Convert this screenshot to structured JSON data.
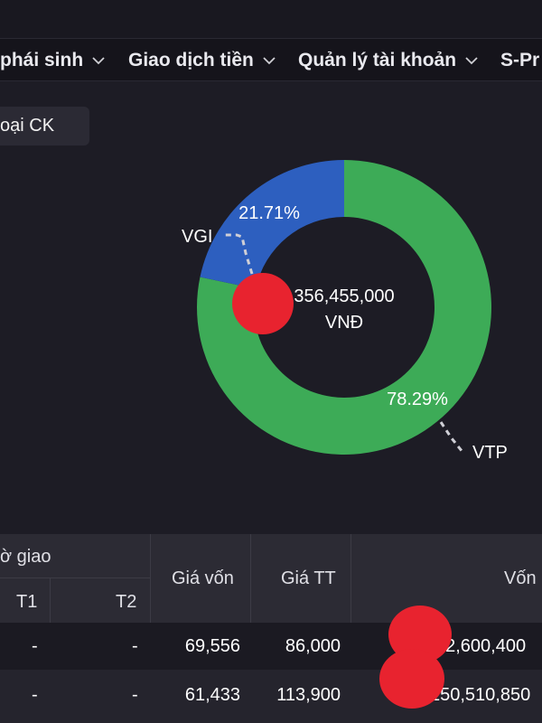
{
  "menu": {
    "items": [
      {
        "label": "phái sinh"
      },
      {
        "label": "Giao dịch tiền"
      },
      {
        "label": "Quản lý tài khoản"
      },
      {
        "label": "S-Pr"
      }
    ]
  },
  "filter": {
    "label": "oại CK"
  },
  "chart_data": {
    "type": "pie",
    "style": "donut",
    "center_text": [
      "356,455,000",
      "VNĐ"
    ],
    "slices": [
      {
        "label": "VTP",
        "value": 78.29,
        "value_label": "78.29%",
        "color": "#3dab57"
      },
      {
        "label": "VGI",
        "value": 21.71,
        "value_label": "21.71%",
        "color": "#2d5fbf"
      }
    ]
  },
  "table": {
    "headers": {
      "pending_group": "ờ giao",
      "t1": "T1",
      "t2": "T2",
      "cost_price": "Giá vốn",
      "market_price": "Giá TT",
      "cost_value": "Vốn"
    },
    "rows": [
      {
        "t1": "-",
        "t2": "-",
        "cost_price": "69,556",
        "market_price": "86,000",
        "cost_value": "62,600,400"
      },
      {
        "t1": "-",
        "t2": "-",
        "cost_price": "61,433",
        "market_price": "113,900",
        "cost_value": "150,510,850"
      }
    ]
  }
}
